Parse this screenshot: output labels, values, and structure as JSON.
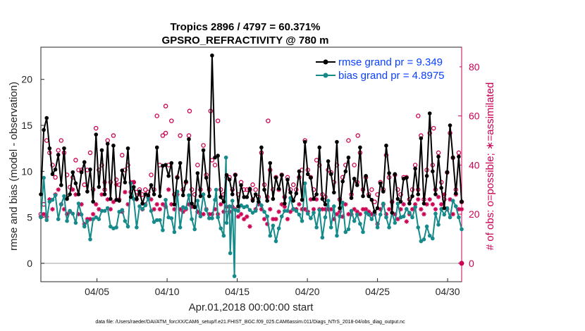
{
  "chart_data": {
    "type": "line",
    "title_line1": "Tropics 2896 / 4797 = 60.371%",
    "title_line2": "GPSRO_REFRACTIVITY @ 780 m",
    "xlabel": "Apr.01,2018 00:00:00 start",
    "ylabel": "rmse and bias (model - observation)",
    "ylabel_right": "# of obs: o=possible; ∗=assimilated",
    "x_start_day": 1,
    "x_end_day": 31,
    "xlim": [
      1.0,
      31.0
    ],
    "xticks": [
      5,
      10,
      15,
      20,
      25,
      30
    ],
    "xticklabels": [
      "04/05",
      "04/10",
      "04/15",
      "04/20",
      "04/25",
      "04/30"
    ],
    "ylim": [
      -2,
      23.5
    ],
    "yticks": [
      0,
      5,
      10,
      15,
      20
    ],
    "yticklabels": [
      "0",
      "5",
      "10",
      "15",
      "20"
    ],
    "ylim_right": [
      -7.5,
      88
    ],
    "yticks_right": [
      0,
      20,
      40,
      60,
      80
    ],
    "yticklabels_right": [
      "0",
      "20",
      "40",
      "60",
      "80"
    ],
    "colors": {
      "rmse": "#000000",
      "bias": "#168a8a",
      "obs": "#cc0052",
      "zero": "#bfbfbf",
      "legend_text": "#0a40ff"
    },
    "legend": [
      {
        "name": "rmse grand pr = 9.349"
      },
      {
        "name": "bias grand pr = 4.8975"
      }
    ],
    "footnote": "data file: /Users/raeder/DAI/ATM_forcXX/CAM6_setup/f.e21.FHIST_BGC.f09_025.CAM6assim.011/Diags_NTrS_2018-04/obs_diag_output.nc",
    "rmse": [
      7.5,
      14.5,
      15.8,
      12.5,
      9.7,
      10.2,
      11.8,
      8.5,
      12.5,
      7.0,
      7.5,
      9.9,
      8.7,
      7.5,
      9.9,
      11.0,
      7.8,
      10.2,
      6.7,
      14.0,
      8.3,
      12.3,
      7.5,
      13.0,
      7.0,
      12.8,
      6.9,
      6.8,
      10.1,
      8.8,
      12.5,
      7.2,
      8.3,
      7.0,
      7.8,
      6.5,
      7.5,
      7.4,
      8.5,
      7.5,
      12.6,
      7.3,
      10.6,
      10.7,
      9.5,
      10.9,
      6.4,
      9.3,
      10.9,
      7.4,
      8.9,
      13.5,
      6.5,
      6.1,
      9.8,
      7.3,
      12.3,
      9.3,
      7.3,
      22.6,
      11.5,
      11.7,
      7.2,
      6.7,
      9.6,
      9.1,
      7.5,
      9.6,
      6.2,
      8.5,
      7.2,
      7.2,
      8.1,
      6.8,
      7.5,
      6.7,
      12.6,
      8.0,
      6.8,
      10.9,
      7.0,
      9.3,
      8.1,
      9.6,
      6.5,
      9.1,
      7.7,
      6.8,
      7.6,
      10.0,
      6.9,
      13.2,
      9.7,
      9.3,
      7.0,
      7.5,
      12.6,
      7.0,
      6.4,
      11.1,
      9.7,
      7.7,
      13.2,
      6.0,
      8.9,
      10.0,
      11.5,
      7.1,
      9.2,
      8.5,
      12.6,
      7.3,
      9.5,
      7.3,
      6.9,
      5.6,
      6.0,
      8.7,
      7.8,
      12.8,
      9.8,
      5.5,
      9.7,
      7.0,
      6.7,
      9.2,
      9.3,
      6.5,
      7.3,
      10.3,
      7.5,
      13.6,
      6.5,
      9.5,
      16.3,
      10.0,
      7.5,
      11.6,
      8.2,
      6.0,
      9.9,
      15.0,
      11.5,
      7.6,
      11.6,
      6.7
    ],
    "bias": [
      5.0,
      9.3,
      4.7,
      6.7,
      6.9,
      7.4,
      4.8,
      6.4,
      7.3,
      4.6,
      5.7,
      5.4,
      4.4,
      6.5,
      5.3,
      4.0,
      4.6,
      2.6,
      4.8,
      5.0,
      4.8,
      5.7,
      5.7,
      6.0,
      4.0,
      3.8,
      3.9,
      5.6,
      5.8,
      4.6,
      4.0,
      8.7,
      7.0,
      3.9,
      6.2,
      5.9,
      6.3,
      7.1,
      5.7,
      4.5,
      4.7,
      4.7,
      3.6,
      6.9,
      5.0,
      4.9,
      3.4,
      7.8,
      3.9,
      6.1,
      6.0,
      7.4,
      4.8,
      3.7,
      6.8,
      5.1,
      7.5,
      5.8,
      4.9,
      4.9,
      6.9,
      5.0,
      3.8,
      3.0,
      4.4,
      6.2,
      6.8,
      5.8,
      5.7,
      6.3,
      6.1,
      6.2,
      5.8,
      5.5,
      5.7,
      7.0,
      6.3,
      5.6,
      5.1,
      3.0,
      4.1,
      2.4,
      3.8,
      5.1,
      5.7,
      5.7,
      7.1,
      5.9,
      5.7,
      5.3,
      4.6,
      8.7,
      5.4,
      4.9,
      5.5,
      3.9,
      5.8,
      2.8,
      5.0,
      6.8,
      3.9,
      6.2,
      3.0,
      5.1,
      6.6,
      3.4,
      3.7,
      5.7,
      4.6,
      5.3,
      4.3,
      3.4,
      5.5,
      5.3,
      4.8,
      5.5,
      3.9,
      5.3,
      6.5,
      5.0,
      3.9,
      5.5,
      4.4,
      6.5,
      5.0,
      5.1,
      5.9,
      5.5,
      5.0,
      6.1,
      3.9,
      2.4,
      2.6,
      4.0,
      3.0,
      2.7,
      5.4,
      4.2,
      5.9,
      5.3,
      6.0,
      5.0,
      6.8,
      6.2,
      5.0,
      3.7
    ],
    "bias_deep_points": [
      [
        14.2,
        11.5
      ],
      [
        14.5,
        1.1
      ],
      [
        14.8,
        -1.4
      ],
      [
        13.5,
        8.0
      ]
    ],
    "possible": [
      20,
      24,
      50,
      45,
      40,
      35,
      46,
      50,
      45,
      36,
      31,
      35,
      42,
      38,
      38,
      32,
      38,
      45,
      30,
      55,
      38,
      40,
      30,
      50,
      33,
      52,
      34,
      32,
      44,
      38,
      40,
      29,
      33,
      29,
      30,
      28,
      30,
      29,
      36,
      30,
      60,
      40,
      52,
      53,
      40,
      58,
      28,
      35,
      52,
      30,
      33,
      52,
      30,
      28,
      40,
      30,
      48,
      36,
      30,
      42,
      40,
      58,
      30,
      28,
      35,
      35,
      30,
      36,
      28,
      33,
      30,
      30,
      30,
      32,
      30,
      27,
      45,
      32,
      27,
      38,
      30,
      35,
      30,
      36,
      27,
      35,
      30,
      32,
      30,
      35,
      38,
      50,
      38,
      35,
      30,
      42,
      40,
      28,
      27,
      38,
      37,
      33,
      40,
      26,
      35,
      40,
      50,
      28,
      40,
      33,
      45,
      30,
      35,
      28,
      30,
      25,
      28,
      33,
      30,
      44,
      35,
      25,
      36,
      30,
      28,
      35,
      35,
      26,
      30,
      40,
      30,
      52,
      26,
      38,
      53,
      40,
      30,
      45,
      33,
      26,
      37,
      53,
      43,
      30,
      45,
      25
    ],
    "assimilated": [
      19,
      20,
      19,
      26,
      22,
      28,
      30,
      24,
      22,
      20,
      21,
      30,
      28,
      20,
      24,
      16,
      18,
      18,
      20,
      24,
      22,
      28,
      33,
      26,
      22,
      25,
      32,
      26,
      21,
      29,
      24,
      33,
      33,
      26,
      28,
      22,
      24,
      27,
      26,
      22,
      24,
      22,
      24,
      23,
      30,
      24,
      22,
      28,
      22,
      21,
      22,
      24,
      23,
      23,
      21,
      20,
      20,
      22,
      20,
      20,
      22,
      20,
      24,
      21,
      23,
      21,
      23,
      22,
      19,
      20,
      18,
      19,
      15,
      26,
      22,
      24,
      22,
      18,
      16,
      22,
      18,
      18,
      21,
      24,
      23,
      18,
      21,
      22,
      22,
      24,
      22,
      22,
      21,
      26,
      22,
      26,
      22,
      22,
      22,
      22,
      22,
      18,
      20,
      21,
      19,
      24,
      20,
      20,
      22,
      21,
      20,
      22,
      22,
      21,
      20,
      20,
      16,
      22,
      24,
      20,
      22,
      25,
      20,
      18,
      22,
      24,
      17,
      20,
      22,
      24,
      26,
      22,
      20,
      24,
      26,
      24,
      22,
      27,
      24,
      28,
      22,
      26,
      20,
      28,
      22,
      22
    ],
    "possible_extra_high": [
      [
        9.9,
        64
      ],
      [
        11.6,
        62
      ],
      [
        13.1,
        62
      ],
      [
        17.2,
        58
      ],
      [
        23.6,
        52
      ],
      [
        27.9,
        60
      ],
      [
        29.0,
        55
      ]
    ]
  }
}
